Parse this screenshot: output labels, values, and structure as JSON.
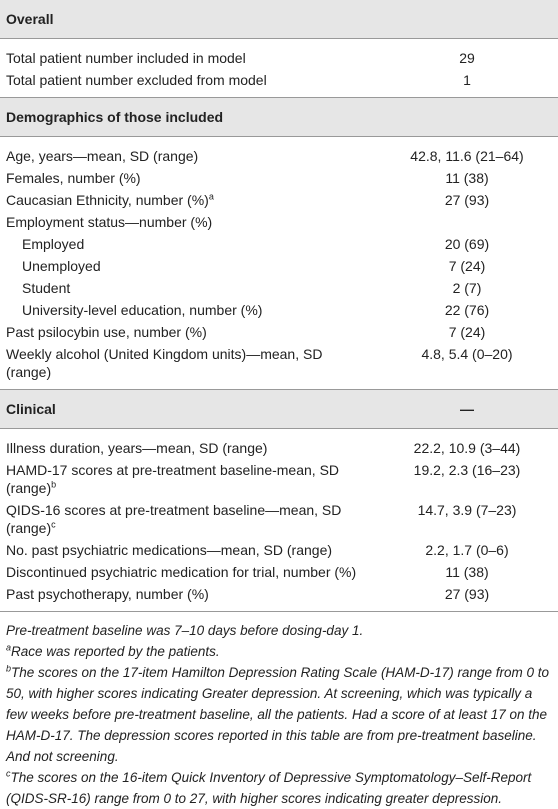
{
  "sections": [
    {
      "title": "Overall",
      "rows": [
        {
          "label": "Total patient number included in model",
          "value": "29"
        },
        {
          "label": "Total patient number excluded from model",
          "value": "1"
        }
      ]
    },
    {
      "title": "Demographics of those included",
      "rows": [
        {
          "label": "Age, years—mean, SD (range)",
          "value": "42.8, 11.6 (21–64)"
        },
        {
          "label": "Females, number (%)",
          "value": "11 (38)"
        },
        {
          "label": "Caucasian Ethnicity, number (%)",
          "sup": "a",
          "value": "27 (93)"
        },
        {
          "label": "Employment status—number (%)"
        },
        {
          "label": "Employed",
          "indent": true,
          "value": "20 (69)"
        },
        {
          "label": "Unemployed",
          "indent": true,
          "value": "7 (24)"
        },
        {
          "label": "Student",
          "indent": true,
          "value": "2 (7)"
        },
        {
          "label": "University-level education, number (%)",
          "indent": true,
          "value": "22 (76)"
        },
        {
          "label": "Past psilocybin use, number (%)",
          "value": "7 (24)"
        },
        {
          "label": "Weekly alcohol (United Kingdom units)—mean, SD (range)",
          "value": "4.8, 5.4 (0–20)"
        }
      ]
    },
    {
      "title": "Clinical",
      "value": "—",
      "rows": [
        {
          "label": "Illness duration, years—mean, SD (range)",
          "value": "22.2, 10.9 (3–44)"
        },
        {
          "label": "HAMD-17 scores at pre-treatment baseline-mean, SD (range)",
          "sup": "b",
          "value": "19.2, 2.3 (16–23)"
        },
        {
          "label": "QIDS-16 scores at pre-treatment baseline—mean, SD (range)",
          "sup": "c",
          "value": "14.7, 3.9 (7–23)"
        },
        {
          "label": "No. past psychiatric medications—mean, SD (range)",
          "value": "2.2, 1.7 (0–6)"
        },
        {
          "label": "Discontinued psychiatric medication for trial, number (%)",
          "value": "11 (38)"
        },
        {
          "label": "Past psychotherapy, number (%)",
          "value": "27 (93)"
        }
      ]
    }
  ],
  "footnotes": [
    {
      "text": "Pre-treatment baseline was 7–10 days before dosing-day 1."
    },
    {
      "sup": "a",
      "text": "Race was reported by the patients."
    },
    {
      "sup": "b",
      "text": "The scores on the 17-item Hamilton Depression Rating Scale (HAM-D-17) range from 0 to 50, with higher scores indicating Greater depression. At screening, which was typically a few weeks before pre-treatment baseline, all the patients. Had a score of at least 17 on the HAM-D-17. The depression scores reported in this table are from pre-treatment baseline. And not screening."
    },
    {
      "sup": "c",
      "text": "The scores on the 16-item Quick Inventory of Depressive Symptomatology–Self-Report (QIDS-SR-16) range from 0 to 27, with higher scores indicating greater depression."
    }
  ]
}
